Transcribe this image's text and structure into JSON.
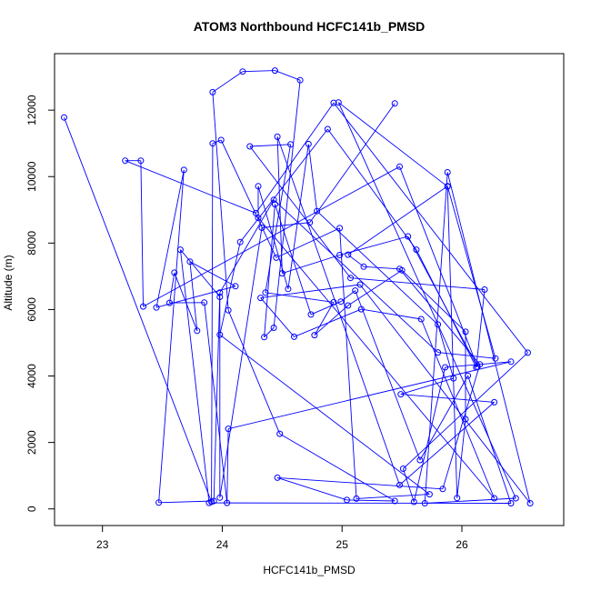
{
  "chart_data": {
    "type": "line",
    "title": "ATOM3 Northbound HCFC141b_PMSD",
    "xlabel": "HCFC141b_PMSD",
    "ylabel": "Altitude (m)",
    "xlim": [
      22.6,
      26.85
    ],
    "ylim": [
      -500,
      13700
    ],
    "x_ticks": [
      23,
      24,
      25,
      26
    ],
    "y_ticks": [
      0,
      2000,
      4000,
      6000,
      8000,
      10000,
      12000
    ],
    "grid": false,
    "marker": "open-circle",
    "colors": {
      "series": "#0000ff",
      "axes": "#000000",
      "background": "#ffffff"
    },
    "series": [
      {
        "points": [
          [
            22.68,
            11780
          ],
          [
            23.91,
            210
          ],
          [
            23.92,
            11000
          ],
          [
            23.99,
            11100
          ],
          [
            24.45,
            7560
          ],
          [
            24.98,
            8450
          ],
          [
            25.12,
            310
          ],
          [
            25.73,
            440
          ],
          [
            23.98,
            5240
          ],
          [
            24.15,
            8030
          ],
          [
            24.88,
            11430
          ],
          [
            25.62,
            7800
          ],
          [
            26.12,
            4260
          ],
          [
            26.19,
            6600
          ],
          [
            25.07,
            6950
          ],
          [
            24.23,
            10910
          ],
          [
            24.57,
            10970
          ],
          [
            24.36,
            6510
          ],
          [
            24.93,
            6220
          ],
          [
            24.77,
            5230
          ],
          [
            25.05,
            6120
          ],
          [
            25.5,
            7180
          ],
          [
            26.03,
            5330
          ],
          [
            26.03,
            2700
          ],
          [
            25.96,
            330
          ],
          [
            25.88,
            9700
          ],
          [
            24.97,
            12230
          ],
          [
            26.45,
            320
          ],
          [
            25.69,
            170
          ],
          [
            25.88,
            10130
          ],
          [
            26.57,
            170
          ],
          [
            25.15,
            6750
          ],
          [
            24.32,
            6350
          ],
          [
            24.6,
            5180
          ],
          [
            25.16,
            6010
          ],
          [
            25.66,
            5710
          ],
          [
            26.27,
            320
          ],
          [
            24.3,
            8760
          ],
          [
            24.3,
            9710
          ],
          [
            24.55,
            6620
          ],
          [
            24.72,
            10980
          ],
          [
            24.79,
            8960
          ],
          [
            25.8,
            5550
          ],
          [
            25.93,
            3930
          ],
          [
            25.49,
            3450
          ],
          [
            26.27,
            3210
          ],
          [
            25.48,
            720
          ],
          [
            24.46,
            11200
          ],
          [
            24.5,
            7090
          ],
          [
            24.98,
            7640
          ],
          [
            25.55,
            8200
          ],
          [
            26.13,
            4280
          ],
          [
            25.48,
            10300
          ],
          [
            23.34,
            6090
          ],
          [
            23.32,
            10480
          ],
          [
            23.19,
            10480
          ],
          [
            24.28,
            8900
          ],
          [
            24.93,
            12220
          ],
          [
            26.55,
            4700
          ],
          [
            25.51,
            1210
          ],
          [
            25.6,
            210
          ],
          [
            25.86,
            4260
          ],
          [
            26.41,
            4430
          ],
          [
            24.05,
            2410
          ],
          [
            24.04,
            180
          ],
          [
            23.85,
            6210
          ],
          [
            23.56,
            6200
          ],
          [
            23.6,
            7110
          ],
          [
            23.79,
            5360
          ],
          [
            23.73,
            7440
          ],
          [
            24.11,
            6700
          ],
          [
            23.45,
            6060
          ],
          [
            23.68,
            10200
          ],
          [
            23.47,
            190
          ],
          [
            23.93,
            240
          ],
          [
            23.98,
            6510
          ],
          [
            24.43,
            9300
          ],
          [
            25.8,
            4710
          ],
          [
            26.28,
            4530
          ],
          [
            25.88,
            9710
          ],
          [
            25.05,
            7650
          ],
          [
            25.18,
            7290
          ],
          [
            25.48,
            7220
          ],
          [
            26.15,
            4350
          ],
          [
            25.84,
            600
          ],
          [
            24.46,
            940
          ],
          [
            25.04,
            270
          ],
          [
            25.44,
            240
          ],
          [
            24.48,
            2260
          ],
          [
            24.05,
            5980
          ],
          [
            23.92,
            12540
          ],
          [
            24.17,
            13160
          ],
          [
            24.44,
            13190
          ],
          [
            24.65,
            12900
          ],
          [
            24.43,
            5450
          ],
          [
            24.35,
            5170
          ],
          [
            24.44,
            9170
          ],
          [
            24.74,
            5850
          ],
          [
            24.99,
            6240
          ],
          [
            25.11,
            6570
          ],
          [
            25.65,
            1470
          ],
          [
            26.05,
            4010
          ],
          [
            26.41,
            170
          ],
          [
            23.89,
            180
          ],
          [
            23.65,
            7800
          ],
          [
            23.98,
            6380
          ],
          [
            23.98,
            340
          ],
          [
            24.33,
            8460
          ],
          [
            24.73,
            8620
          ],
          [
            25.44,
            12200
          ]
        ]
      }
    ]
  }
}
